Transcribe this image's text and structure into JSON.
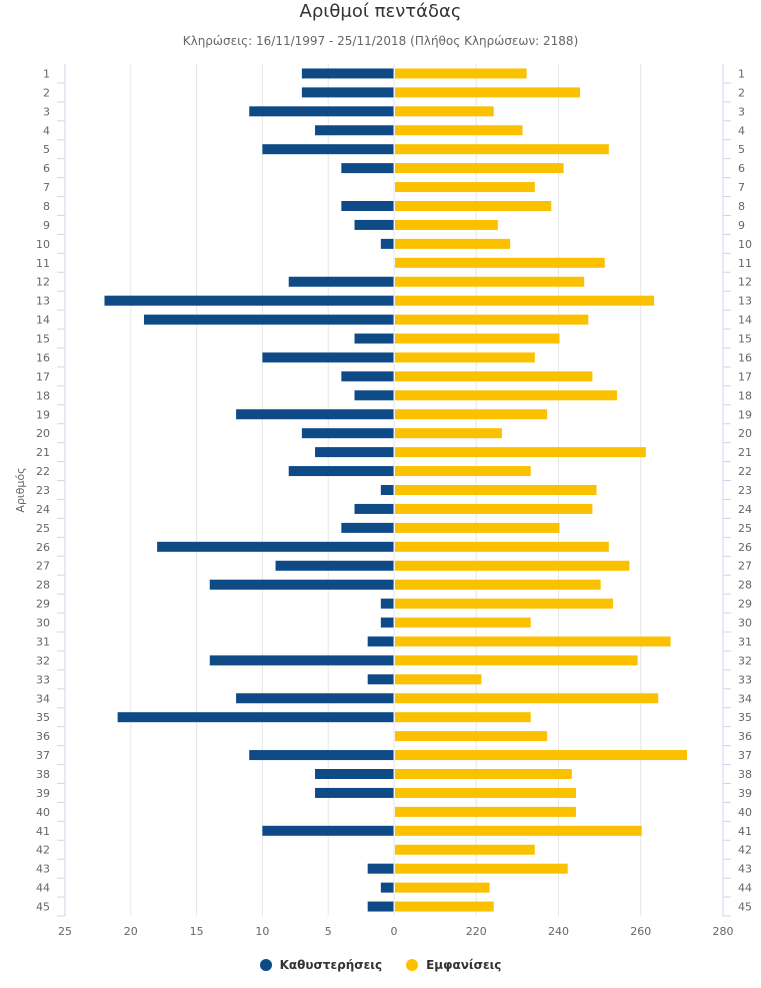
{
  "chart_data": {
    "type": "bar",
    "title": "Αριθμοί πεντάδας",
    "subtitle": "Κληρώσεις: 16/11/1997 - 25/11/2018 (Πλήθος Κληρώσεων: 2188)",
    "ylabel": "Αριθμός",
    "categories": [
      "1",
      "2",
      "3",
      "4",
      "5",
      "6",
      "7",
      "8",
      "9",
      "10",
      "11",
      "12",
      "13",
      "14",
      "15",
      "16",
      "17",
      "18",
      "19",
      "20",
      "21",
      "22",
      "23",
      "24",
      "25",
      "26",
      "27",
      "28",
      "29",
      "30",
      "31",
      "32",
      "33",
      "34",
      "35",
      "36",
      "37",
      "38",
      "39",
      "40",
      "41",
      "42",
      "43",
      "44",
      "45"
    ],
    "series": [
      {
        "name": "Καθυστερήσεις",
        "color": "#0d4a86",
        "xlim": [
          0,
          25
        ],
        "x_ticks": [
          "25",
          "20",
          "15",
          "10",
          "5",
          "0"
        ],
        "values": [
          7,
          7,
          11,
          6,
          10,
          4,
          0,
          4,
          3,
          1,
          0,
          8,
          22,
          19,
          3,
          10,
          4,
          3,
          12,
          7,
          6,
          8,
          1,
          3,
          4,
          18,
          9,
          14,
          1,
          1,
          2,
          14,
          2,
          12,
          21,
          0,
          11,
          6,
          6,
          0,
          10,
          0,
          2,
          1,
          2
        ]
      },
      {
        "name": "Εμφανίσεις",
        "color": "#fbc100",
        "xlim": [
          200,
          280
        ],
        "x_ticks": [
          "220",
          "240",
          "260",
          "280"
        ],
        "values": [
          232,
          245,
          224,
          231,
          252,
          241,
          234,
          238,
          225,
          228,
          251,
          246,
          263,
          247,
          240,
          234,
          248,
          254,
          237,
          226,
          261,
          233,
          249,
          248,
          240,
          252,
          257,
          250,
          253,
          233,
          267,
          259,
          221,
          264,
          233,
          237,
          271,
          243,
          244,
          244,
          260,
          234,
          242,
          223,
          224
        ]
      }
    ],
    "legend_position": "bottom-center",
    "grid": true
  }
}
